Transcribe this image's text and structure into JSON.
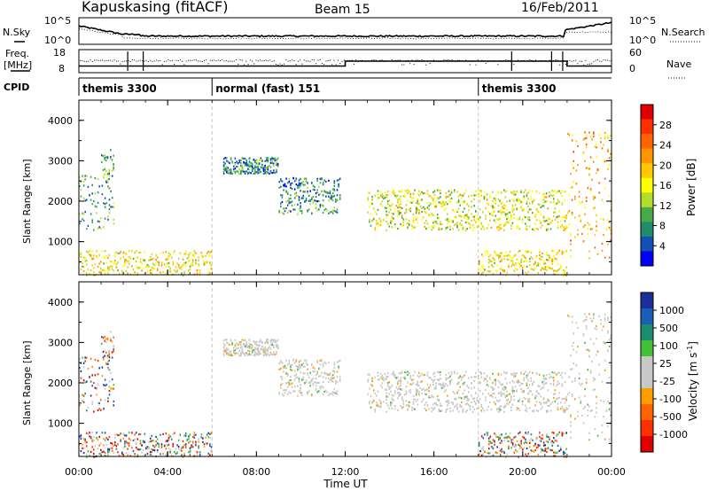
{
  "header": {
    "station": "Kapuskasing (fitACF)",
    "beam": "Beam 15",
    "date": "16/Feb/2011"
  },
  "top_panels": {
    "nsky_label": "N.Sky",
    "nsky_ticks": [
      "10^5",
      "10^0"
    ],
    "nsearch_label": "N.Search",
    "nsearch_ticks": [
      "10^5",
      "10^0"
    ],
    "freq_label": "Freq.",
    "freq_unit": "[MHz]",
    "freq_ticks": [
      "18",
      "8"
    ],
    "nave_label": "Nave",
    "nave_ticks": [
      "60",
      "0"
    ],
    "cpid_label": "CPID",
    "cpid_segments": [
      {
        "label": "themis 3300",
        "start_hour": 0,
        "end_hour": 6
      },
      {
        "label": "normal (fast) 151",
        "start_hour": 6,
        "end_hour": 18
      },
      {
        "label": "themis 3300",
        "start_hour": 18,
        "end_hour": 24
      }
    ]
  },
  "x_axis": {
    "label": "Time UT",
    "tick_labels": [
      "00:00",
      "04:00",
      "08:00",
      "12:00",
      "16:00",
      "20:00",
      "00:00"
    ],
    "range_hours": [
      0,
      24
    ]
  },
  "power_panel": {
    "ylabel": "Slant Range [km]",
    "y_ticks": [
      "4000",
      "3000",
      "2000",
      "1000"
    ],
    "colorbar_label": "Power [dB]",
    "colorbar_ticks": [
      "28",
      "24",
      "20",
      "16",
      "12",
      "8",
      "4"
    ],
    "colors": [
      "#e00000",
      "#ff3000",
      "#ff6400",
      "#ff9600",
      "#ffc800",
      "#ffff00",
      "#b4dc28",
      "#46aa46",
      "#1f8c6e",
      "#1450b4",
      "#0000ff"
    ]
  },
  "velocity_panel": {
    "ylabel": "Slant Range [km]",
    "y_ticks": [
      "4000",
      "3000",
      "2000",
      "1000"
    ],
    "colorbar_label": "Velocity [m s",
    "colorbar_label_sup": "-1",
    "colorbar_label_end": "]",
    "colorbar_ticks": [
      "1000",
      "500",
      "100",
      "25",
      "-25",
      "-100",
      "-500",
      "-1000"
    ],
    "colors": [
      "#1a2f9c",
      "#1c5db8",
      "#1e8c6e",
      "#44c03a",
      "#c8c8c8",
      "#c8c8c8",
      "#ff9d00",
      "#ff6400",
      "#ff3000",
      "#e00000"
    ]
  },
  "chart_data": {
    "type": "heatmap",
    "title": "Kapuskasing (fitACF)  Beam 15  16/Feb/2011",
    "xlabel": "Time UT",
    "ylabel": "Slant Range [km]",
    "xlim_hours": [
      0,
      24
    ],
    "ylim_km": [
      180,
      4500
    ],
    "frequency_mhz": [
      {
        "start_hour": 0,
        "end_hour": 12,
        "value": 10.5
      },
      {
        "start_hour": 12,
        "end_hour": 22,
        "value": 13
      },
      {
        "start_hour": 22,
        "end_hour": 24,
        "value": 10.5
      }
    ],
    "scatter_regions": [
      {
        "start_hour": 0.0,
        "end_hour": 1.6,
        "range_km": [
          1300,
          2700
        ],
        "power_db": 8,
        "velocity": "mixed"
      },
      {
        "start_hour": 1.0,
        "end_hour": 1.6,
        "range_km": [
          2500,
          3300
        ],
        "power_db": 8,
        "velocity": "mixed"
      },
      {
        "start_hour": 6.5,
        "end_hour": 9.0,
        "range_km": [
          2700,
          3100
        ],
        "power_db": 6,
        "velocity": "low"
      },
      {
        "start_hour": 9.0,
        "end_hour": 11.8,
        "range_km": [
          1700,
          2600
        ],
        "power_db": 6,
        "velocity": "low"
      },
      {
        "start_hour": 13.0,
        "end_hour": 22.0,
        "range_km": [
          1300,
          2300
        ],
        "power_db": 14,
        "velocity": "low"
      },
      {
        "start_hour": 22.0,
        "end_hour": 24.0,
        "range_km": [
          600,
          3800
        ],
        "power_db": 20,
        "velocity": "low"
      },
      {
        "start_hour": 0.0,
        "end_hour": 6.0,
        "range_km": [
          180,
          800
        ],
        "power_db": 16,
        "velocity": "mixed"
      },
      {
        "start_hour": 18.0,
        "end_hour": 22.0,
        "range_km": [
          180,
          800
        ],
        "power_db": 16,
        "velocity": "mixed"
      }
    ]
  }
}
